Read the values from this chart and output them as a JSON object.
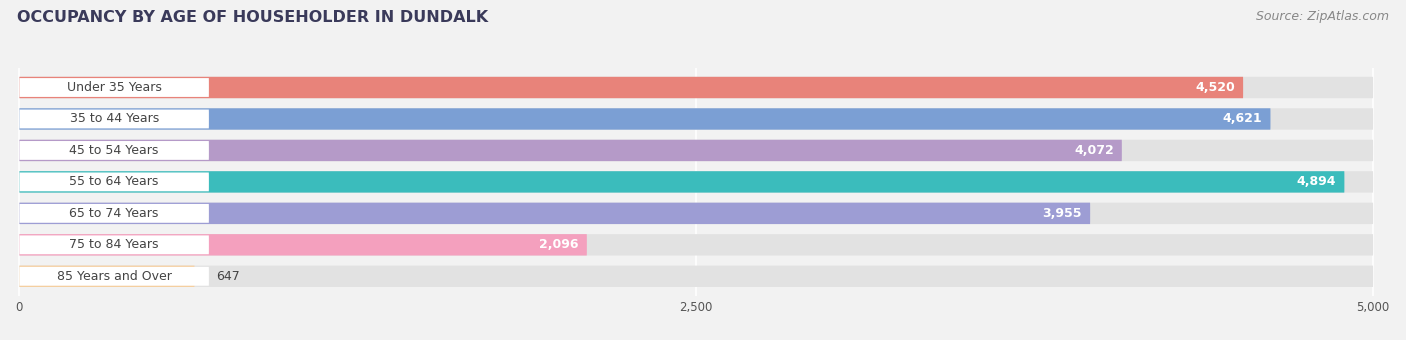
{
  "title": "OCCUPANCY BY AGE OF HOUSEHOLDER IN DUNDALK",
  "source": "Source: ZipAtlas.com",
  "categories": [
    "Under 35 Years",
    "35 to 44 Years",
    "45 to 54 Years",
    "55 to 64 Years",
    "65 to 74 Years",
    "75 to 84 Years",
    "85 Years and Over"
  ],
  "values": [
    4520,
    4621,
    4072,
    4894,
    3955,
    2096,
    647
  ],
  "bar_colors": [
    "#E8837A",
    "#7B9FD4",
    "#B59AC8",
    "#3BBCBC",
    "#9D9DD4",
    "#F4A0BE",
    "#F5CFA0"
  ],
  "xlim_max": 5000,
  "xticks": [
    0,
    2500,
    5000
  ],
  "bg_color": "#f2f2f2",
  "track_color": "#e2e2e2",
  "white": "#ffffff",
  "title_color": "#3a3a5a",
  "source_color": "#888888",
  "label_text_color": "#444444",
  "value_text_color": "#ffffff",
  "title_fontsize": 11.5,
  "source_fontsize": 9,
  "label_fontsize": 9,
  "value_fontsize": 9,
  "tick_fontsize": 8.5
}
